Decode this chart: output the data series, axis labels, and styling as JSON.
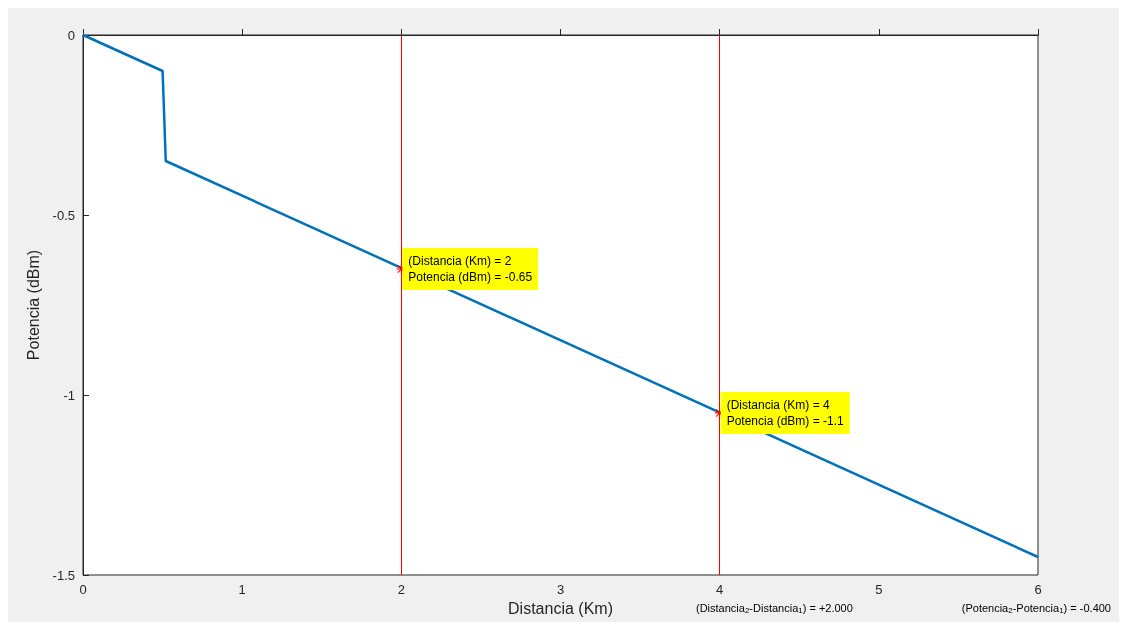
{
  "chart_data": {
    "type": "line",
    "xlabel": "Distancia (Km)",
    "ylabel": "Potencia (dBm)",
    "x": [
      0,
      0.5,
      0.52,
      6
    ],
    "series": [
      {
        "color": "#0072bd",
        "values": [
          0,
          -0.1,
          -0.35,
          -1.45
        ]
      }
    ],
    "xlim": [
      0,
      6
    ],
    "xticks": [
      0,
      1,
      2,
      3,
      4,
      5,
      6
    ],
    "ylim": [
      -1.5,
      0
    ],
    "yticks": [
      -1.5,
      -1,
      -0.5,
      0
    ],
    "grid": false,
    "marker": "none",
    "line_style": "solid",
    "ref_lines": [
      {
        "axis": "x",
        "value": 2,
        "color": "#ff0000"
      },
      {
        "axis": "x",
        "value": 4,
        "color": "#ff0000"
      }
    ],
    "annotations": [
      {
        "text": "(Distancia (Km) = 2\nPotencia (dBm) = -0.65",
        "x": 2,
        "y": -0.65
      },
      {
        "text": "(Distancia (Km) = 4\nPotencia (dBm) = -1.1",
        "x": 4,
        "y": -1.05
      },
      "(Distancia$_{2}$-Distancia$_{1}$) = +2.000",
      "(Potencia$_{2}$-Potencia$_{1}$) = -0.400"
    ]
  }
}
